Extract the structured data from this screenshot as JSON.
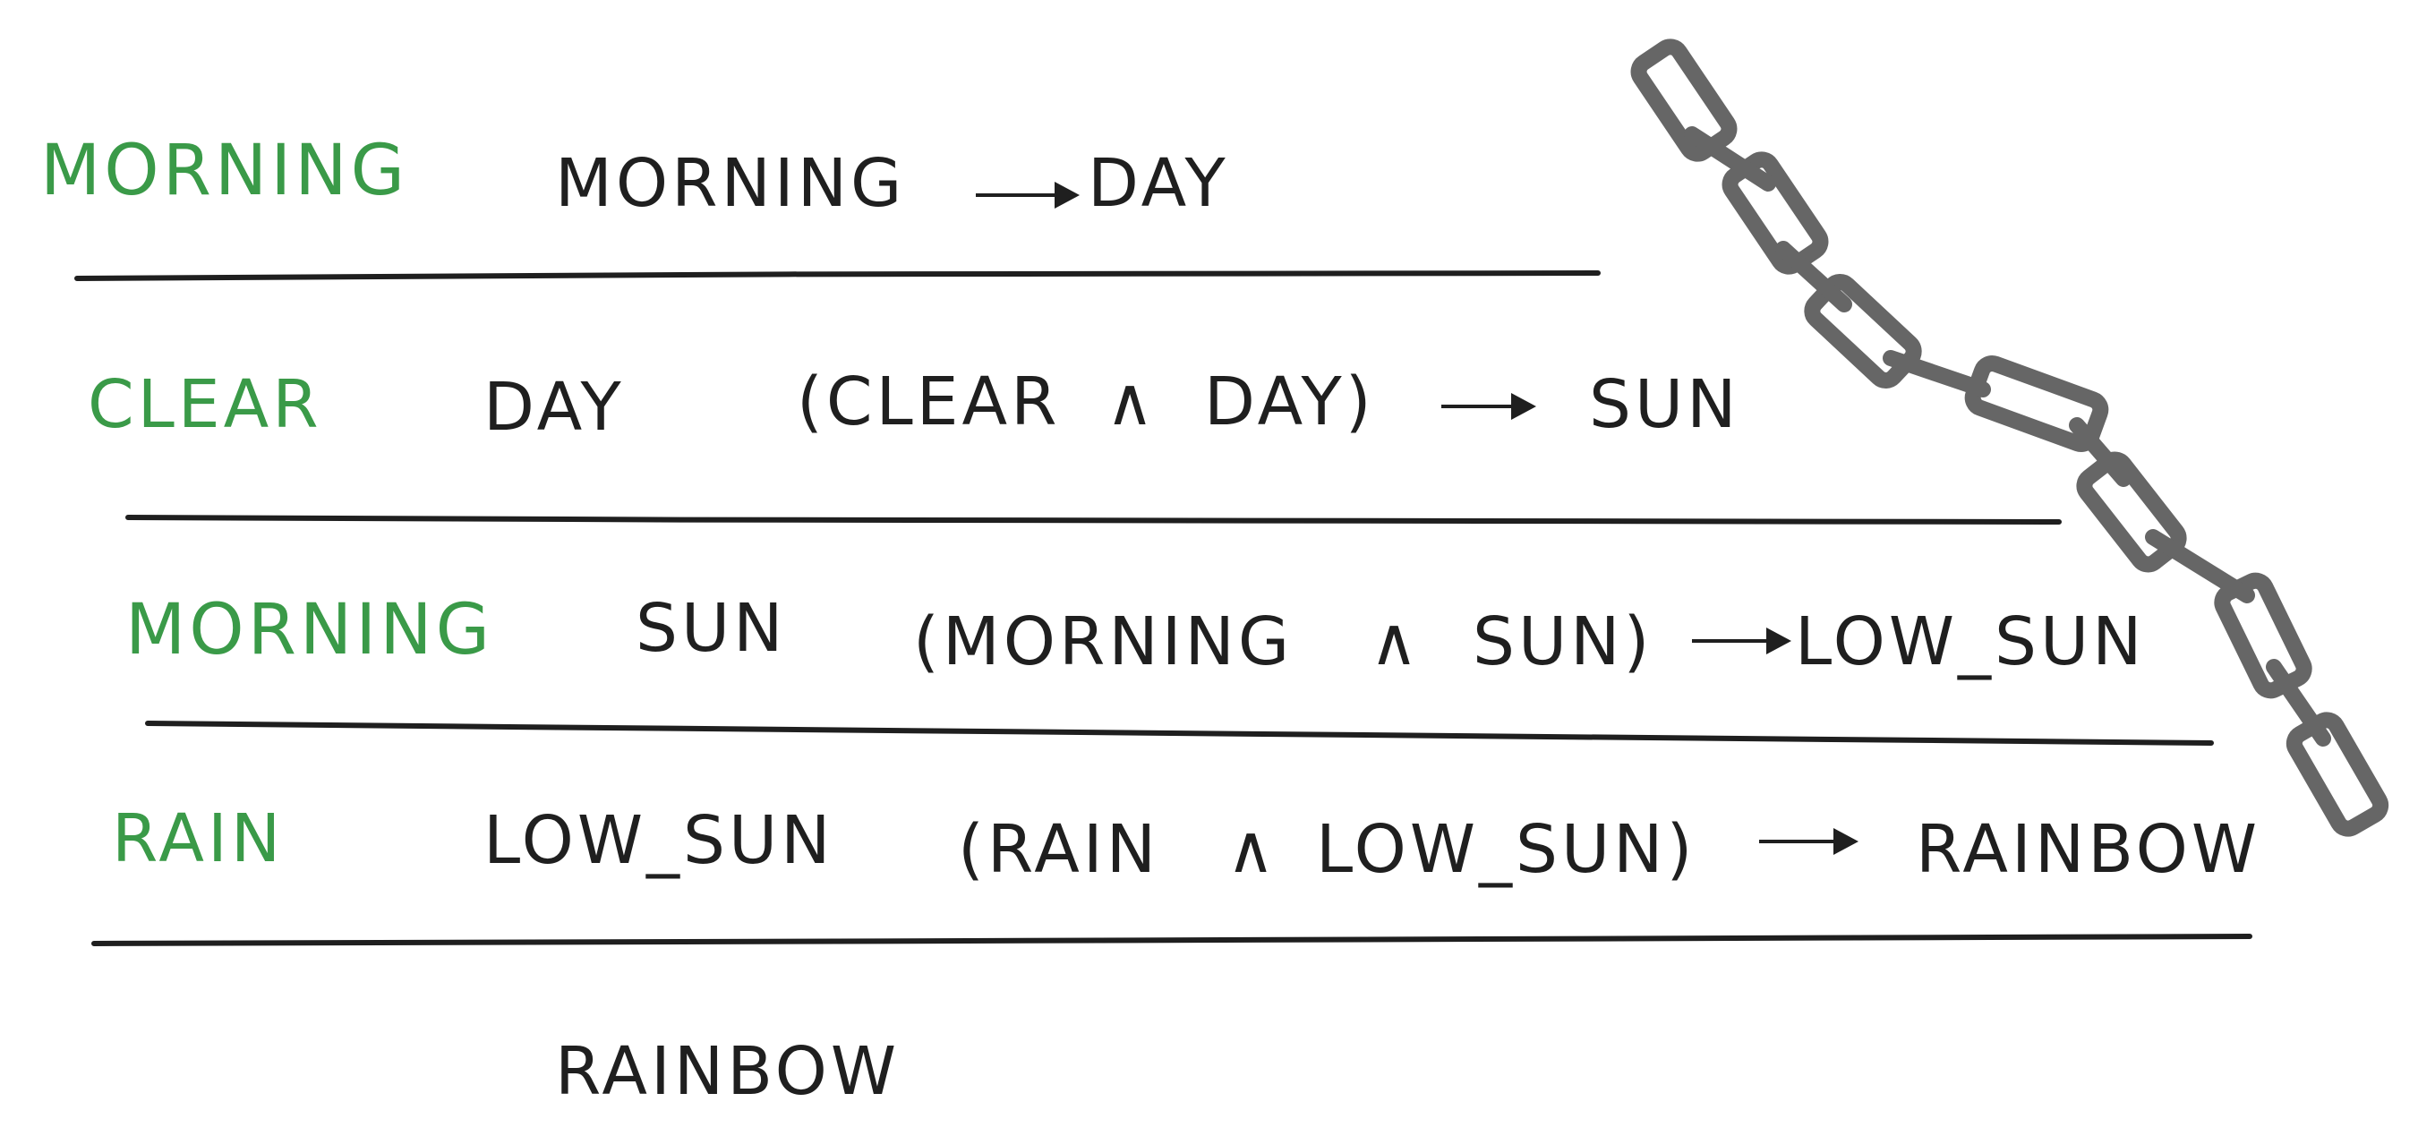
{
  "colors": {
    "green": "#3a9a48",
    "ink": "#1f1f1f",
    "chain": "#666666"
  },
  "rows": [
    {
      "known": "MORNING",
      "given": "MORNING",
      "rule_parts": [],
      "rule_result": "DAY"
    },
    {
      "known": "CLEAR",
      "given": "DAY",
      "rule_parts": [
        "(CLEAR",
        "∧",
        "DAY)"
      ],
      "rule_result": "SUN"
    },
    {
      "known": "MORNING",
      "given": "SUN",
      "rule_parts": [
        "(MORNING",
        "∧",
        "SUN)"
      ],
      "rule_result": "LOW_SUN"
    },
    {
      "known": "RAIN",
      "given": "LOW_SUN",
      "rule_parts": [
        "(RAIN",
        "∧",
        "LOW_SUN)"
      ],
      "rule_result": "RAINBOW"
    }
  ],
  "final": "RAINBOW",
  "chain_icon": "chain-icon"
}
